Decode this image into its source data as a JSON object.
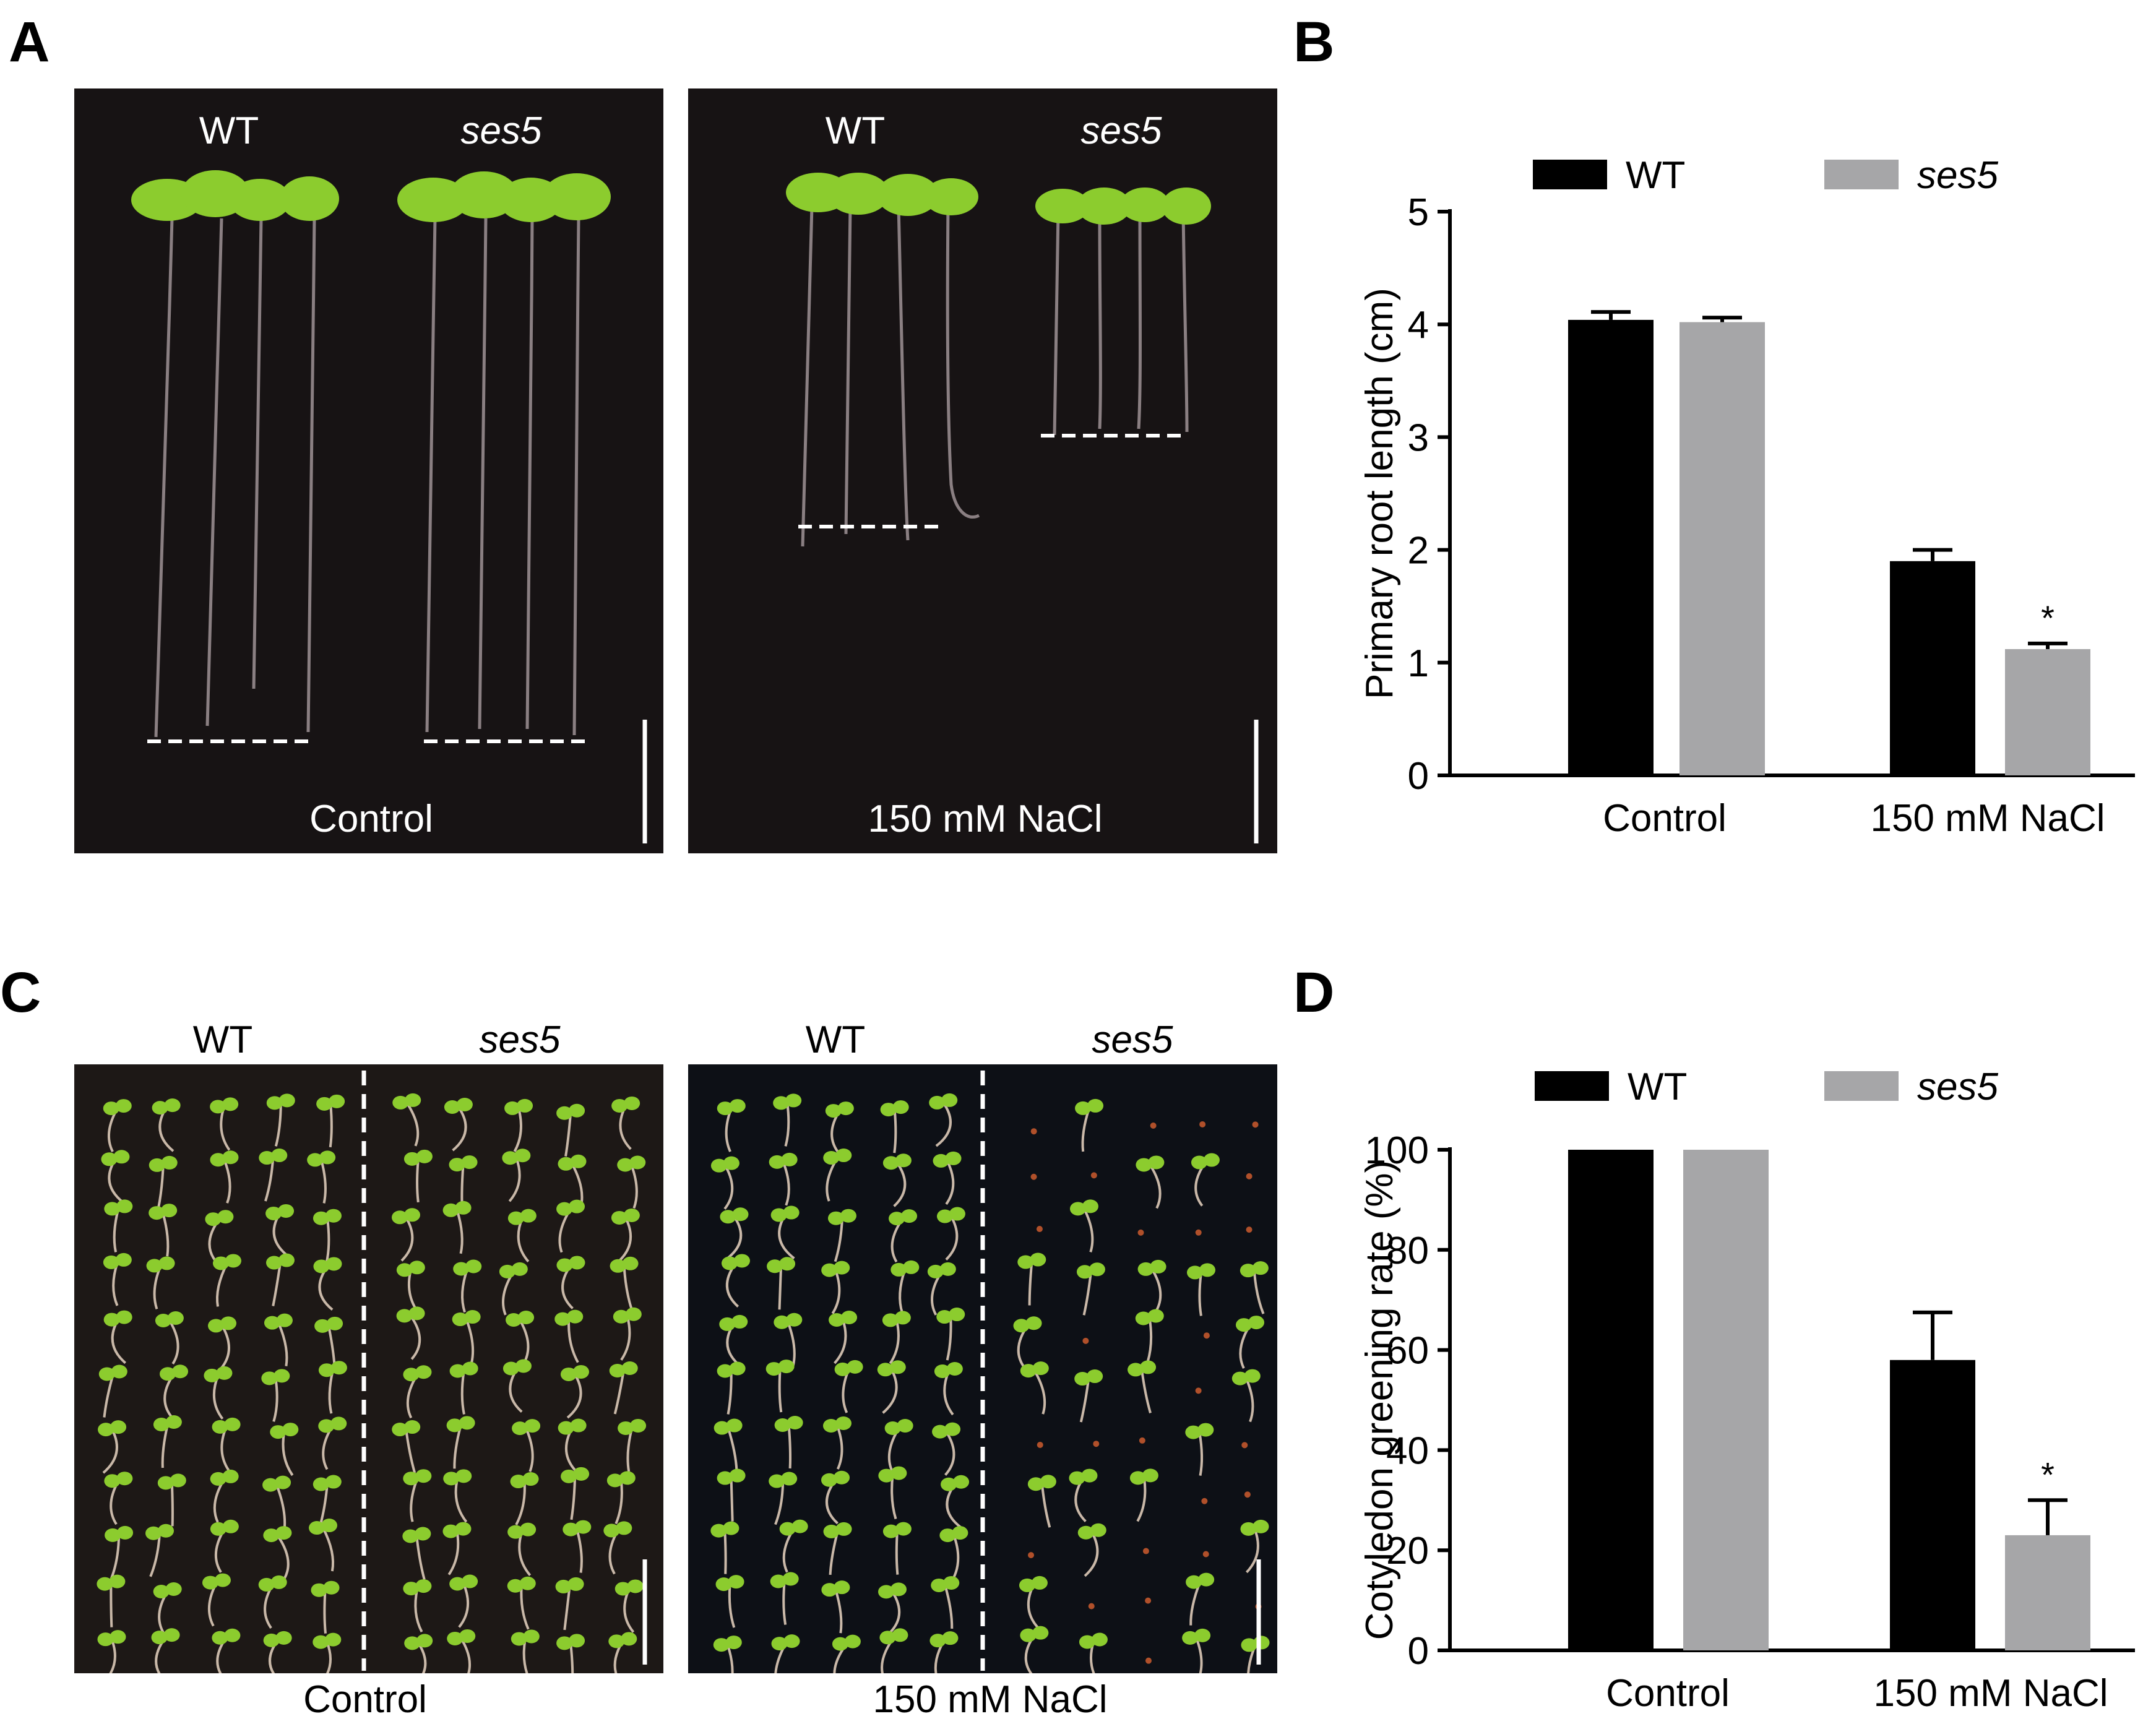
{
  "panels": {
    "a": {
      "letter": "A",
      "left_photo": {
        "geno1": "WT",
        "geno2": "ses5",
        "condition": "Control"
      },
      "right_photo": {
        "geno1": "WT",
        "geno2": "ses5",
        "condition": "150 mM NaCl"
      }
    },
    "b": {
      "letter": "B"
    },
    "c": {
      "letter": "C",
      "left_photo": {
        "geno1": "WT",
        "geno2": "ses5",
        "condition": "Control"
      },
      "right_photo": {
        "geno1": "WT",
        "geno2": "ses5",
        "condition": "150 mM NaCl"
      }
    },
    "d": {
      "letter": "D"
    }
  },
  "colors": {
    "wt": "#000000",
    "ses5": "#a6a6a8",
    "photo_bg": "#171314",
    "seedling_green": "#8ccc2e"
  },
  "chart_data": [
    {
      "id": "B",
      "type": "bar",
      "categories": [
        "Control",
        "150 mM NaCl"
      ],
      "series": [
        {
          "name": "WT",
          "values": [
            4.04,
            1.9
          ],
          "errors": [
            0.07,
            0.1
          ]
        },
        {
          "name": "ses5",
          "values": [
            4.02,
            1.12
          ],
          "errors": [
            0.04,
            0.05
          ]
        }
      ],
      "annotations": [
        {
          "series": "ses5",
          "category": "150 mM NaCl",
          "text": "*"
        }
      ],
      "ylabel": "Primary root length (cm)",
      "ylim": [
        0,
        5
      ],
      "yticks": [
        0,
        1,
        2,
        3,
        4,
        5
      ],
      "legend_position": "top",
      "grid": false
    },
    {
      "id": "D",
      "type": "bar",
      "categories": [
        "Control",
        "150 mM NaCl"
      ],
      "series": [
        {
          "name": "WT",
          "values": [
            100,
            58
          ],
          "errors": [
            0,
            9.5
          ]
        },
        {
          "name": "ses5",
          "values": [
            100,
            23
          ],
          "errors": [
            0,
            7
          ]
        }
      ],
      "annotations": [
        {
          "series": "ses5",
          "category": "150 mM NaCl",
          "text": "*"
        }
      ],
      "ylabel": "Cotyledon greening rate (%)",
      "ylim": [
        0,
        100
      ],
      "yticks": [
        0,
        20,
        40,
        60,
        80,
        100
      ],
      "legend_position": "top",
      "grid": false
    }
  ]
}
